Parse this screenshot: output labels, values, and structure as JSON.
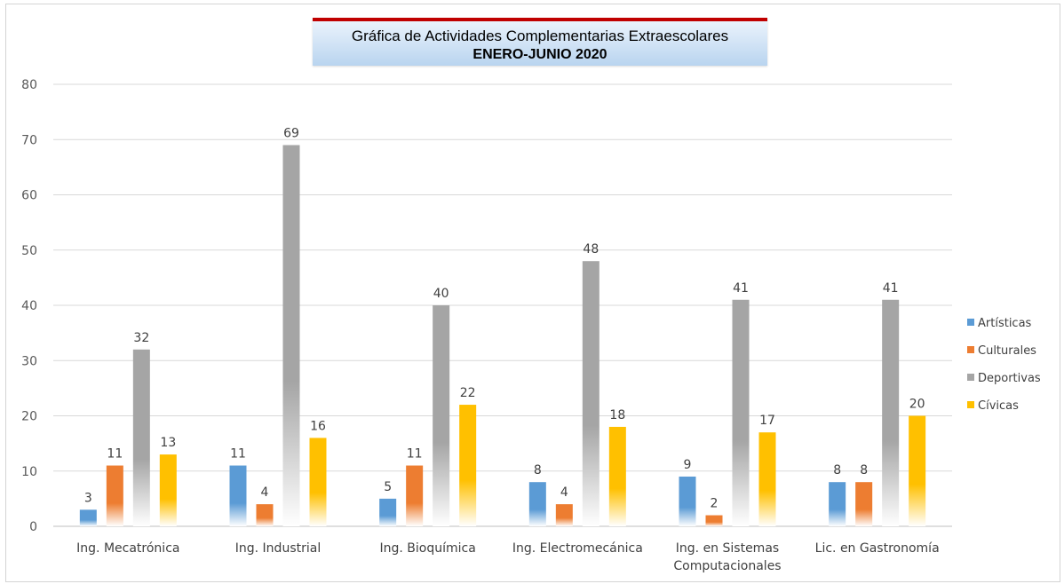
{
  "chart_data": {
    "type": "bar",
    "title": "Gráfica de Actividades Complementarias Extraescolares",
    "subtitle": "ENERO-JUNIO 2020",
    "categories": [
      [
        "Ing. Mecatrónica"
      ],
      [
        "Ing. Industrial"
      ],
      [
        "Ing. Bioquímica"
      ],
      [
        "Ing. Electromecánica"
      ],
      [
        "Ing. en Sistemas",
        "Computacionales"
      ],
      [
        "Lic. en Gastronomía"
      ]
    ],
    "series": [
      {
        "name": "Artísticas",
        "color": "#5b9bd5",
        "values": [
          3,
          11,
          5,
          8,
          9,
          8
        ]
      },
      {
        "name": "Culturales",
        "color": "#ed7d31",
        "values": [
          11,
          4,
          11,
          4,
          2,
          8
        ]
      },
      {
        "name": "Deportivas",
        "color": "#a5a5a5",
        "values": [
          32,
          69,
          40,
          48,
          41,
          41
        ]
      },
      {
        "name": "Cívicas",
        "color": "#ffc000",
        "values": [
          13,
          16,
          22,
          18,
          17,
          20
        ]
      }
    ],
    "ylim": [
      0,
      80
    ],
    "yticks": [
      "0",
      "10",
      "20",
      "30",
      "40",
      "50",
      "60",
      "70",
      "80"
    ],
    "grid": true,
    "legend_position": "right",
    "data_labels": true
  }
}
